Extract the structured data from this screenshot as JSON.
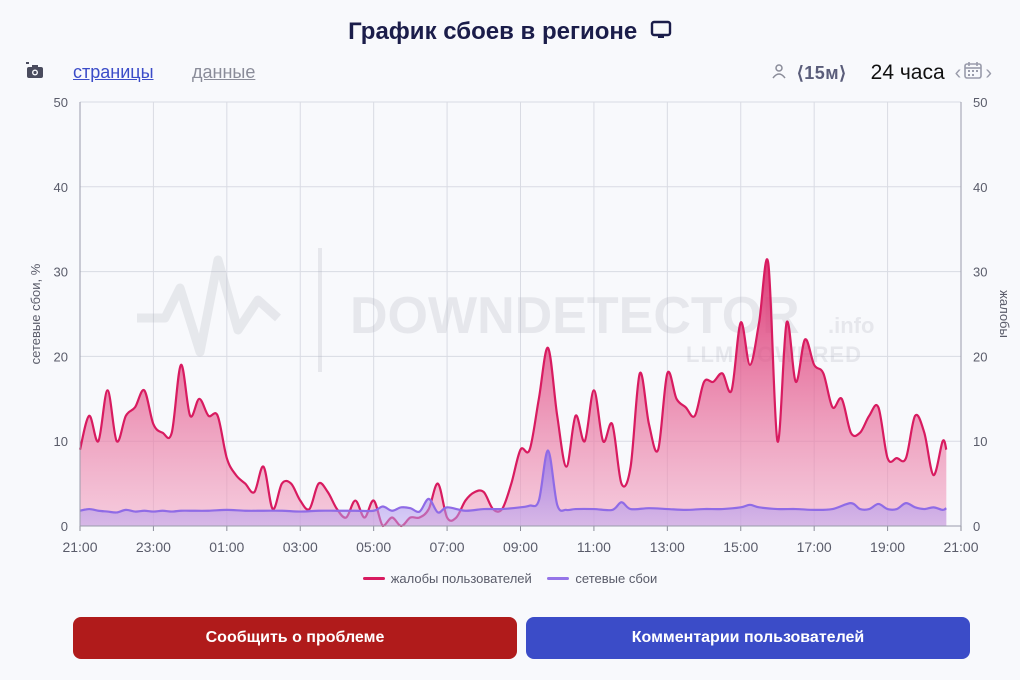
{
  "header": {
    "title": "График сбоев в регионе"
  },
  "toolbar": {
    "pages_label": "страницы",
    "data_label": "данные",
    "interval_label": "⟨15м⟩",
    "range_label": "24 часа"
  },
  "watermark": {
    "brand": "DOWNDETECTOR",
    "suffix": ".info",
    "sub": "LLM POWERED"
  },
  "legend": {
    "complaints": "жалобы пользователей",
    "failures": "сетевые сбои"
  },
  "buttons": {
    "report": "Сообщить о проблеме",
    "comments": "Комментарии пользователей"
  },
  "colors": {
    "complaints": "#d81b60",
    "failures": "#9575e8",
    "report_btn": "#b01b1b",
    "comments_btn": "#3b4cc8"
  },
  "chart_data": {
    "type": "area",
    "ylabel": "сетевые сбои, %",
    "ylabel_right": "жалобы",
    "ylim": [
      0,
      50
    ],
    "yticks": [
      0,
      10,
      20,
      30,
      40,
      50
    ],
    "xlim": [
      21,
      45
    ],
    "xticks": [
      "21:00",
      "23:00",
      "01:00",
      "03:00",
      "05:00",
      "07:00",
      "09:00",
      "11:00",
      "13:00",
      "15:00",
      "17:00",
      "19:00",
      "21:00"
    ],
    "grid": true,
    "legend_position": "bottom",
    "series": [
      {
        "name": "жалобы пользователей",
        "points": [
          [
            21.0,
            9
          ],
          [
            21.25,
            13
          ],
          [
            21.5,
            10
          ],
          [
            21.75,
            16
          ],
          [
            22.0,
            10
          ],
          [
            22.25,
            13
          ],
          [
            22.5,
            14
          ],
          [
            22.75,
            16
          ],
          [
            23.0,
            12
          ],
          [
            23.25,
            11
          ],
          [
            23.5,
            11
          ],
          [
            23.75,
            19
          ],
          [
            24.0,
            13
          ],
          [
            24.25,
            15
          ],
          [
            24.5,
            13
          ],
          [
            24.75,
            13
          ],
          [
            25.0,
            8
          ],
          [
            25.25,
            6
          ],
          [
            25.5,
            5
          ],
          [
            25.75,
            4
          ],
          [
            26.0,
            7
          ],
          [
            26.25,
            2
          ],
          [
            26.5,
            5
          ],
          [
            26.75,
            5
          ],
          [
            27.0,
            3
          ],
          [
            27.25,
            2
          ],
          [
            27.5,
            5
          ],
          [
            27.75,
            4
          ],
          [
            28.0,
            2
          ],
          [
            28.25,
            1
          ],
          [
            28.5,
            3
          ],
          [
            28.75,
            1
          ],
          [
            29.0,
            3
          ],
          [
            29.25,
            0
          ],
          [
            29.5,
            1
          ],
          [
            29.75,
            0
          ],
          [
            30.0,
            1
          ],
          [
            30.25,
            1
          ],
          [
            30.5,
            2
          ],
          [
            30.75,
            5
          ],
          [
            31.0,
            1
          ],
          [
            31.25,
            1
          ],
          [
            31.5,
            3
          ],
          [
            31.75,
            4
          ],
          [
            32.0,
            4
          ],
          [
            32.25,
            2
          ],
          [
            32.5,
            2
          ],
          [
            32.75,
            5
          ],
          [
            33.0,
            9
          ],
          [
            33.25,
            9
          ],
          [
            33.5,
            15
          ],
          [
            33.75,
            21
          ],
          [
            34.0,
            13
          ],
          [
            34.25,
            7
          ],
          [
            34.5,
            13
          ],
          [
            34.75,
            10
          ],
          [
            35.0,
            16
          ],
          [
            35.25,
            10
          ],
          [
            35.5,
            12
          ],
          [
            35.75,
            5
          ],
          [
            36.0,
            7
          ],
          [
            36.25,
            18
          ],
          [
            36.5,
            12
          ],
          [
            36.75,
            9
          ],
          [
            37.0,
            18
          ],
          [
            37.25,
            15
          ],
          [
            37.5,
            14
          ],
          [
            37.75,
            13
          ],
          [
            38.0,
            17
          ],
          [
            38.25,
            17
          ],
          [
            38.5,
            18
          ],
          [
            38.75,
            16
          ],
          [
            39.0,
            24
          ],
          [
            39.25,
            19
          ],
          [
            39.5,
            24
          ],
          [
            39.75,
            31
          ],
          [
            40.0,
            10
          ],
          [
            40.25,
            24
          ],
          [
            40.5,
            17
          ],
          [
            40.75,
            22
          ],
          [
            41.0,
            19
          ],
          [
            41.25,
            18
          ],
          [
            41.5,
            14
          ],
          [
            41.75,
            15
          ],
          [
            42.0,
            11
          ],
          [
            42.25,
            11
          ],
          [
            42.5,
            13
          ],
          [
            42.75,
            14
          ],
          [
            43.0,
            8
          ],
          [
            43.25,
            8
          ],
          [
            43.5,
            8
          ],
          [
            43.75,
            13
          ],
          [
            44.0,
            11
          ],
          [
            44.25,
            6
          ],
          [
            44.5,
            10
          ],
          [
            44.6,
            9
          ]
        ]
      },
      {
        "name": "сетевые сбои",
        "points": [
          [
            21.0,
            1.8
          ],
          [
            21.25,
            2.0
          ],
          [
            21.5,
            1.8
          ],
          [
            21.75,
            1.7
          ],
          [
            22.0,
            1.6
          ],
          [
            22.25,
            1.9
          ],
          [
            22.5,
            1.7
          ],
          [
            22.75,
            1.8
          ],
          [
            23.0,
            1.7
          ],
          [
            23.25,
            1.8
          ],
          [
            23.5,
            1.7
          ],
          [
            23.75,
            1.8
          ],
          [
            24.0,
            1.8
          ],
          [
            24.5,
            1.8
          ],
          [
            25.0,
            1.9
          ],
          [
            25.5,
            1.8
          ],
          [
            26.0,
            1.8
          ],
          [
            26.5,
            1.8
          ],
          [
            27.0,
            1.7
          ],
          [
            27.5,
            1.8
          ],
          [
            28.0,
            1.8
          ],
          [
            28.5,
            1.8
          ],
          [
            29.0,
            1.8
          ],
          [
            29.25,
            2.3
          ],
          [
            29.5,
            1.8
          ],
          [
            29.75,
            2.2
          ],
          [
            30.0,
            2.1
          ],
          [
            30.25,
            1.7
          ],
          [
            30.5,
            3.2
          ],
          [
            30.75,
            1.6
          ],
          [
            31.0,
            2.2
          ],
          [
            31.5,
            1.8
          ],
          [
            32.0,
            2.0
          ],
          [
            32.5,
            2.0
          ],
          [
            33.0,
            2.2
          ],
          [
            33.25,
            2.4
          ],
          [
            33.5,
            3.0
          ],
          [
            33.75,
            8.9
          ],
          [
            34.0,
            2.5
          ],
          [
            34.25,
            1.9
          ],
          [
            34.5,
            2.0
          ],
          [
            35.0,
            2.0
          ],
          [
            35.5,
            1.9
          ],
          [
            35.75,
            2.8
          ],
          [
            36.0,
            2.0
          ],
          [
            36.5,
            2.1
          ],
          [
            37.0,
            2.0
          ],
          [
            37.5,
            1.9
          ],
          [
            38.0,
            2.0
          ],
          [
            38.5,
            2.0
          ],
          [
            39.0,
            2.2
          ],
          [
            39.25,
            2.5
          ],
          [
            39.5,
            2.2
          ],
          [
            40.0,
            2.0
          ],
          [
            40.5,
            2.0
          ],
          [
            41.0,
            1.9
          ],
          [
            41.5,
            2.0
          ],
          [
            42.0,
            2.7
          ],
          [
            42.25,
            2.0
          ],
          [
            42.5,
            2.0
          ],
          [
            42.75,
            2.6
          ],
          [
            43.0,
            2.0
          ],
          [
            43.25,
            2.0
          ],
          [
            43.5,
            2.7
          ],
          [
            43.75,
            2.2
          ],
          [
            44.0,
            2.0
          ],
          [
            44.25,
            2.2
          ],
          [
            44.5,
            1.9
          ],
          [
            44.6,
            2.1
          ]
        ]
      }
    ]
  }
}
